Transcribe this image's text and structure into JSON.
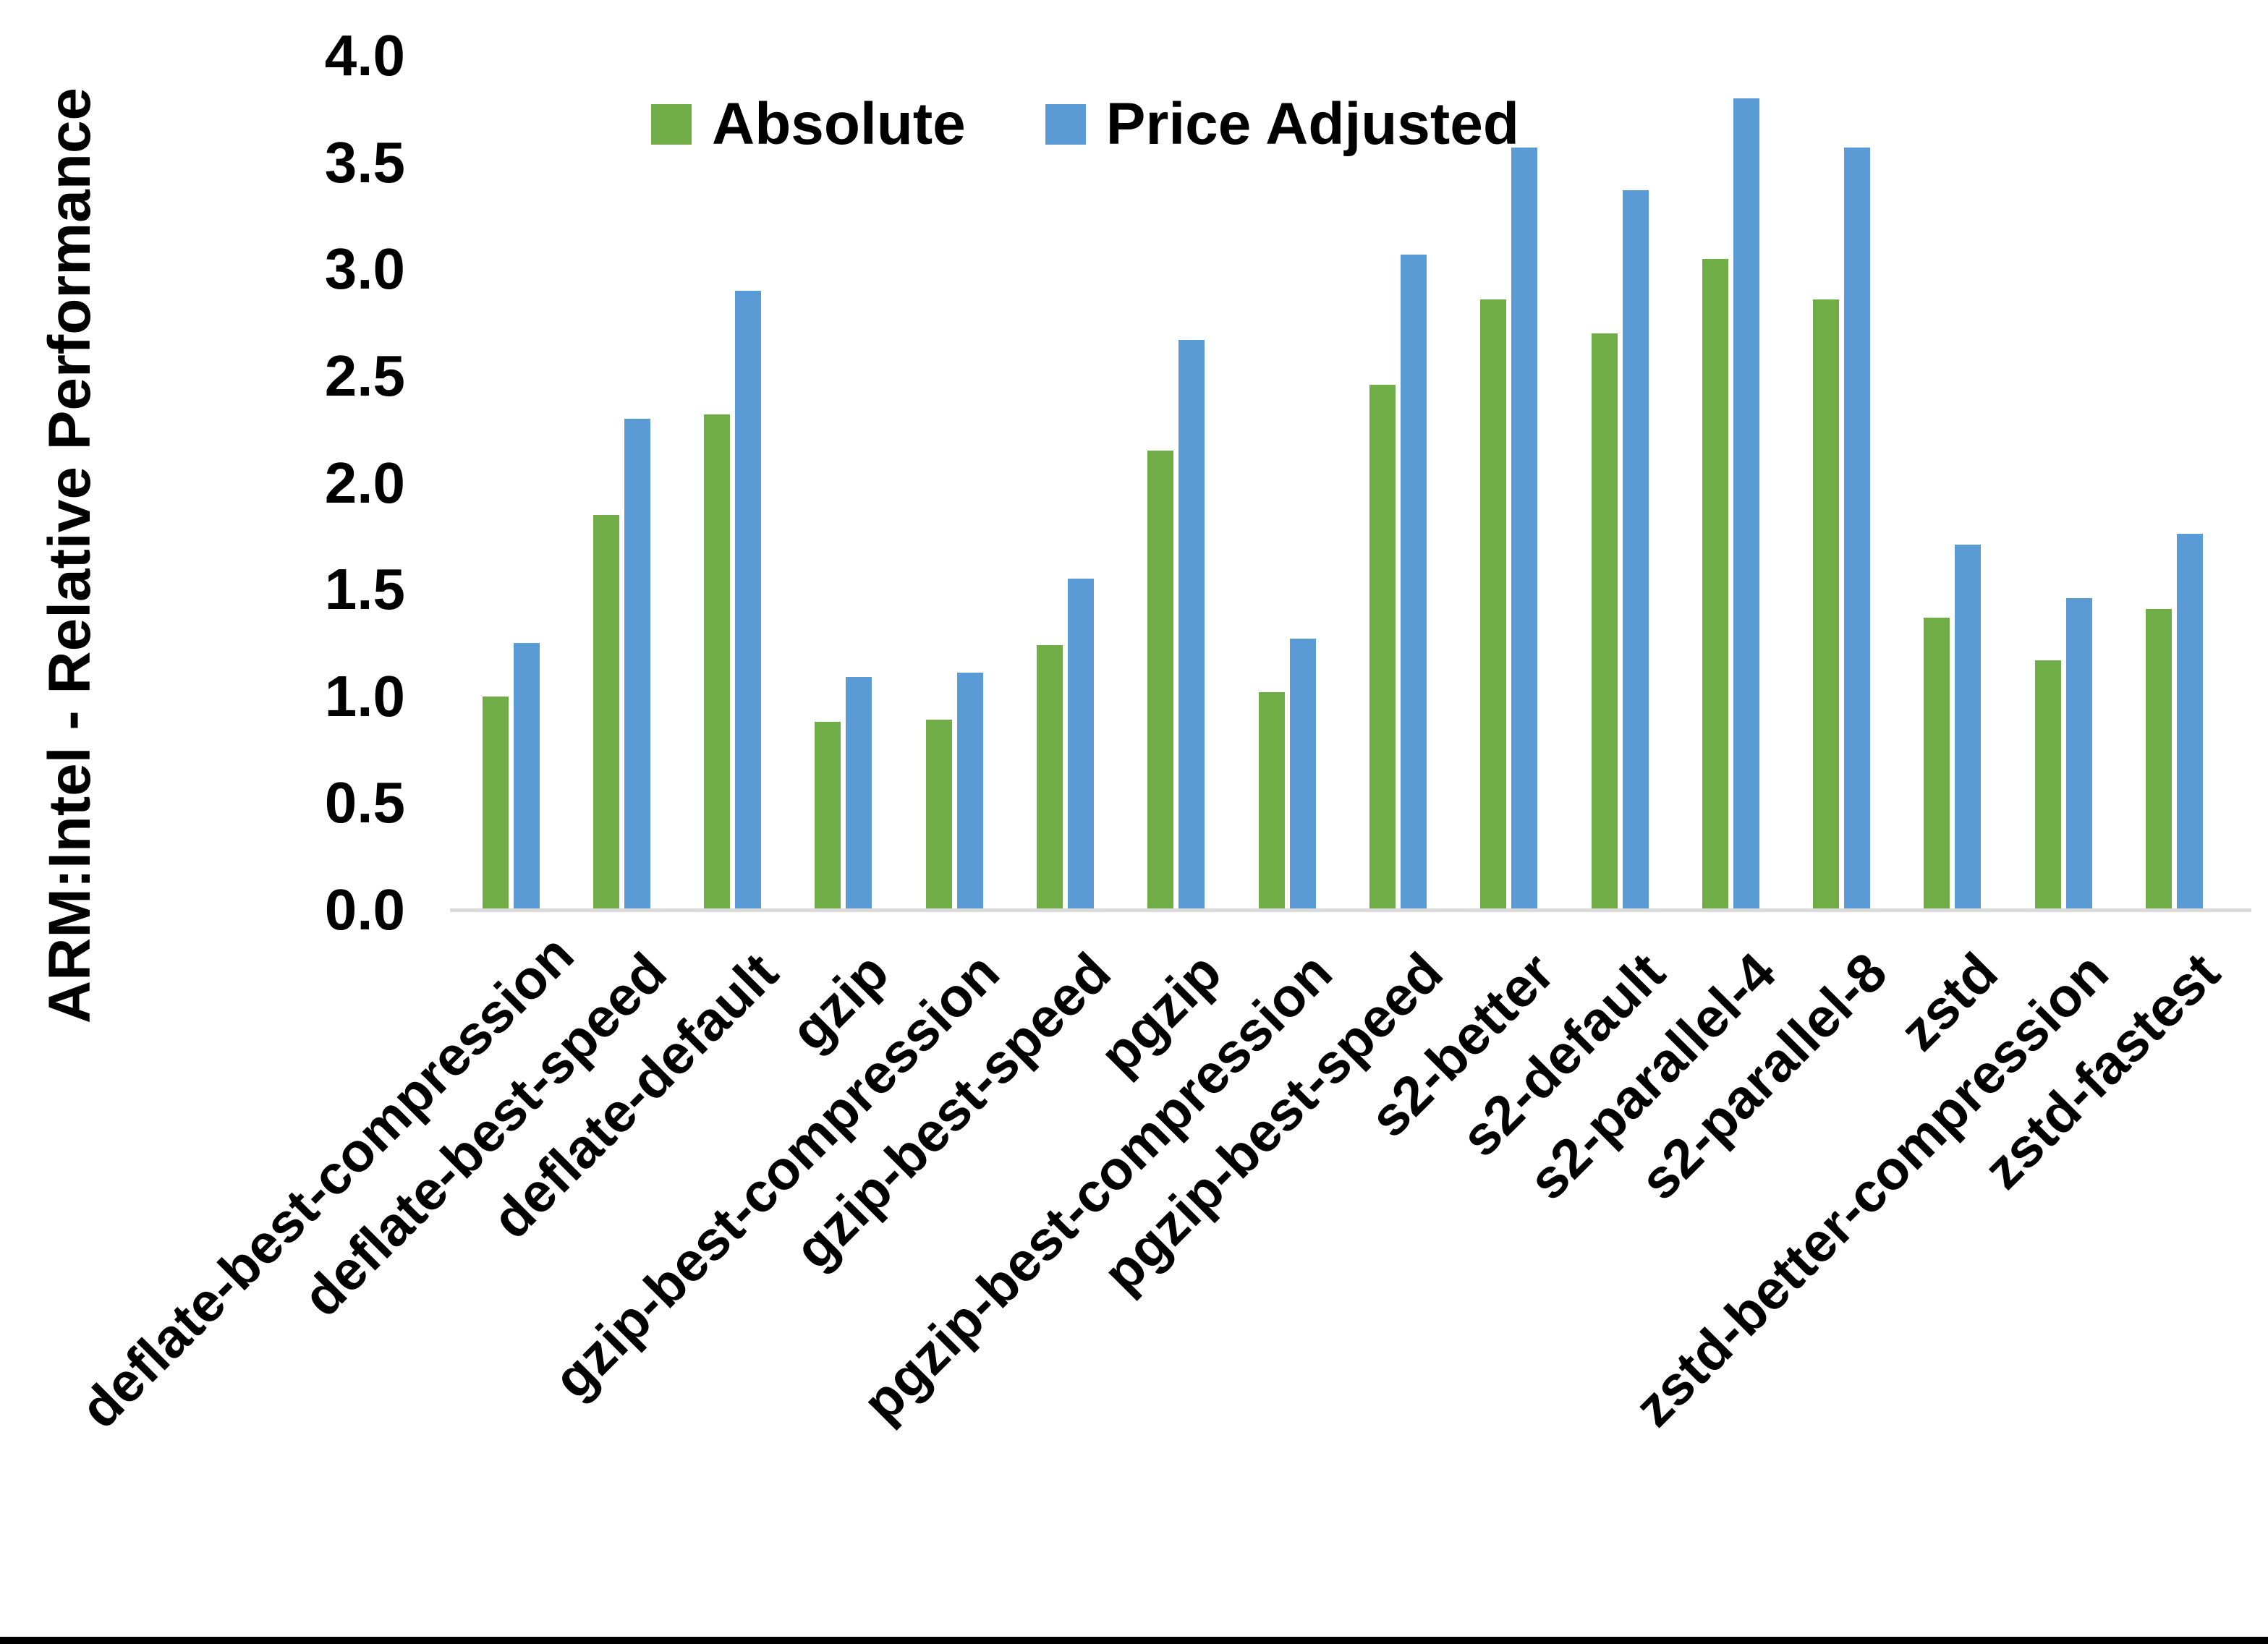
{
  "chart_data": {
    "type": "bar",
    "title": "",
    "xlabel": "",
    "ylabel": "ARM:Intel - Relative Performance",
    "ylim": [
      0.0,
      4.0
    ],
    "ytick_step": 0.5,
    "ytick_format_decimals": 1,
    "grid": false,
    "legend_position": "top-center",
    "axis_line_color": "#d9d9d9",
    "categories": [
      "deflate-best-compression",
      "deflate-best-speed",
      "deflate-default",
      "gzip",
      "gzip-best-compression",
      "gzip-best-speed",
      "pgzip",
      "pgzip-best-compression",
      "pgzip-best-speed",
      "s2-better",
      "s2-default",
      "s2-parallel-4",
      "s2-parallel-8",
      "zstd",
      "zstd-better-compression",
      "zstd-fastest"
    ],
    "series": [
      {
        "name": "Absolute",
        "color": "#70AD47",
        "values": [
          1.0,
          1.85,
          2.32,
          0.88,
          0.89,
          1.24,
          2.15,
          1.02,
          2.46,
          2.86,
          2.7,
          3.05,
          2.86,
          1.37,
          1.17,
          1.41
        ]
      },
      {
        "name": "Price Adjusted",
        "color": "#5B9BD5",
        "values": [
          1.25,
          2.3,
          2.9,
          1.09,
          1.11,
          1.55,
          2.67,
          1.27,
          3.07,
          3.57,
          3.37,
          3.8,
          3.57,
          1.71,
          1.46,
          1.76
        ]
      }
    ]
  }
}
